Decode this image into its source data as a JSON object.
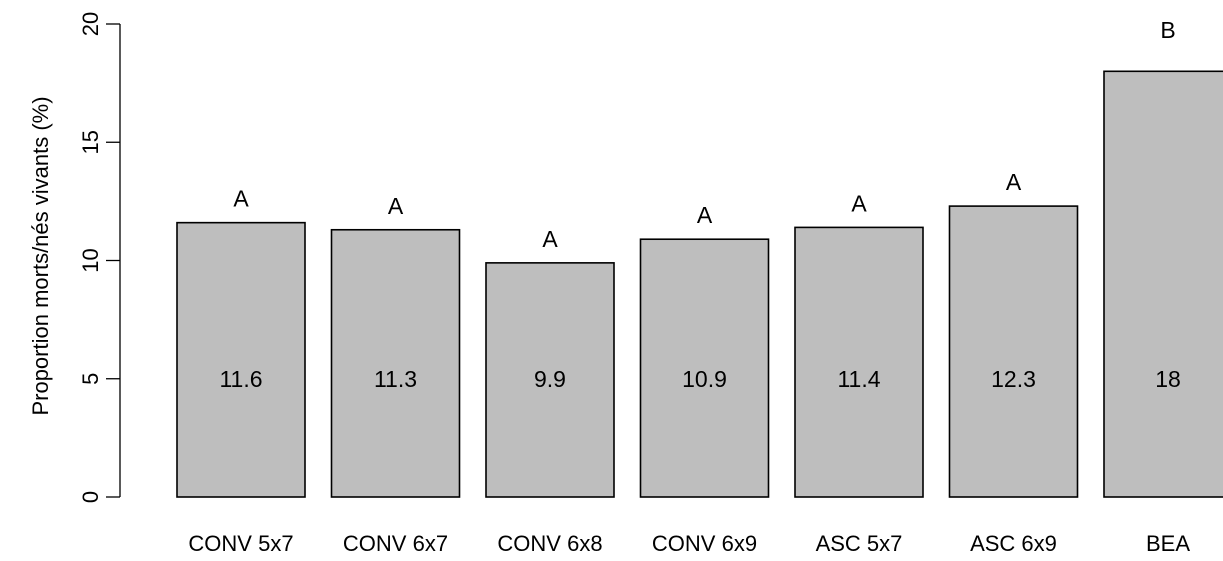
{
  "chart_data": {
    "type": "bar",
    "title": "",
    "xlabel": "",
    "ylabel": "Proportion morts/nés vivants (%)",
    "ylim": [
      0,
      20
    ],
    "yticks": [
      0,
      5,
      10,
      15,
      20
    ],
    "grid": false,
    "categories": [
      "CONV 5x7",
      "CONV 6x7",
      "CONV 6x8",
      "CONV 6x9",
      "ASC 5x7",
      "ASC 6x9",
      "BEA"
    ],
    "values": [
      11.6,
      11.3,
      9.9,
      10.9,
      11.4,
      12.3,
      18.0
    ],
    "value_labels": [
      "11.6",
      "11.3",
      "9.9",
      "10.9",
      "11.4",
      "12.3",
      "18"
    ],
    "significance_letters": [
      "A",
      "A",
      "A",
      "A",
      "A",
      "A",
      "B"
    ],
    "colors": {
      "bar_fill": "#bebebe",
      "bar_stroke": "#000000",
      "axis": "#000000"
    }
  }
}
